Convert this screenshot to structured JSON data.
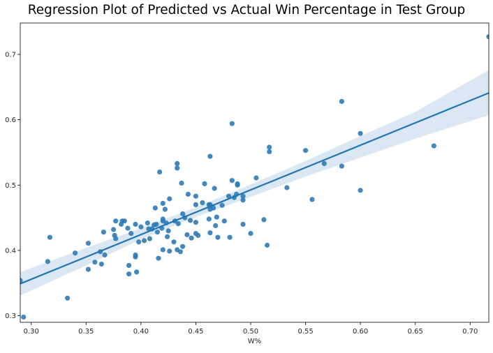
{
  "chart_data": {
    "type": "scatter",
    "title": "Regression Plot of Predicted vs Actual Win Percentage in Test Group",
    "xlabel": "W%",
    "ylabel": "",
    "xlim": [
      0.29,
      0.717
    ],
    "ylim": [
      0.29,
      0.748
    ],
    "xticks": [
      "0.30",
      "0.35",
      "0.40",
      "0.45",
      "0.50",
      "0.55",
      "0.60",
      "0.65",
      "0.70"
    ],
    "xtick_values": [
      0.3,
      0.35,
      0.4,
      0.45,
      0.5,
      0.55,
      0.6,
      0.65,
      0.7
    ],
    "yticks": [
      "0.3",
      "0.4",
      "0.5",
      "0.6",
      "0.7"
    ],
    "ytick_values": [
      0.3,
      0.4,
      0.5,
      0.6,
      0.7
    ],
    "grid": false,
    "colors": {
      "points": "#2f7ab5",
      "line": "#2474b0",
      "band": "#cfe0ef"
    },
    "regression": {
      "x": [
        0.29,
        0.717
      ],
      "y": [
        0.349,
        0.641
      ]
    },
    "confidence_band": {
      "x": [
        0.29,
        0.35,
        0.4,
        0.45,
        0.5,
        0.55,
        0.6,
        0.65,
        0.717
      ],
      "lower": [
        0.331,
        0.377,
        0.417,
        0.451,
        0.482,
        0.513,
        0.542,
        0.571,
        0.607
      ],
      "upper": [
        0.367,
        0.404,
        0.434,
        0.466,
        0.501,
        0.537,
        0.575,
        0.612,
        0.676
      ]
    },
    "points": [
      [
        0.29,
        0.354
      ],
      [
        0.293,
        0.298
      ],
      [
        0.315,
        0.383
      ],
      [
        0.317,
        0.42
      ],
      [
        0.333,
        0.327
      ],
      [
        0.34,
        0.396
      ],
      [
        0.352,
        0.371
      ],
      [
        0.352,
        0.411
      ],
      [
        0.358,
        0.382
      ],
      [
        0.363,
        0.398
      ],
      [
        0.364,
        0.379
      ],
      [
        0.366,
        0.428
      ],
      [
        0.367,
        0.393
      ],
      [
        0.375,
        0.432
      ],
      [
        0.376,
        0.423
      ],
      [
        0.377,
        0.445
      ],
      [
        0.377,
        0.418
      ],
      [
        0.382,
        0.44
      ],
      [
        0.383,
        0.445
      ],
      [
        0.385,
        0.445
      ],
      [
        0.388,
        0.434
      ],
      [
        0.389,
        0.364
      ],
      [
        0.389,
        0.377
      ],
      [
        0.391,
        0.426
      ],
      [
        0.395,
        0.44
      ],
      [
        0.395,
        0.39
      ],
      [
        0.395,
        0.393
      ],
      [
        0.396,
        0.367
      ],
      [
        0.398,
        0.413
      ],
      [
        0.4,
        0.436
      ],
      [
        0.403,
        0.415
      ],
      [
        0.406,
        0.442
      ],
      [
        0.407,
        0.433
      ],
      [
        0.408,
        0.418
      ],
      [
        0.41,
        0.433
      ],
      [
        0.412,
        0.439
      ],
      [
        0.413,
        0.465
      ],
      [
        0.414,
        0.44
      ],
      [
        0.415,
        0.428
      ],
      [
        0.416,
        0.388
      ],
      [
        0.417,
        0.52
      ],
      [
        0.419,
        0.434
      ],
      [
        0.42,
        0.472
      ],
      [
        0.42,
        0.445
      ],
      [
        0.42,
        0.448
      ],
      [
        0.42,
        0.401
      ],
      [
        0.422,
        0.463
      ],
      [
        0.423,
        0.442
      ],
      [
        0.424,
        0.421
      ],
      [
        0.425,
        0.43
      ],
      [
        0.426,
        0.479
      ],
      [
        0.426,
        0.399
      ],
      [
        0.43,
        0.413
      ],
      [
        0.431,
        0.445
      ],
      [
        0.433,
        0.533
      ],
      [
        0.433,
        0.526
      ],
      [
        0.433,
        0.401
      ],
      [
        0.434,
        0.441
      ],
      [
        0.436,
        0.398
      ],
      [
        0.437,
        0.503
      ],
      [
        0.438,
        0.456
      ],
      [
        0.438,
        0.406
      ],
      [
        0.44,
        0.45
      ],
      [
        0.442,
        0.424
      ],
      [
        0.443,
        0.486
      ],
      [
        0.445,
        0.446
      ],
      [
        0.446,
        0.419
      ],
      [
        0.45,
        0.483
      ],
      [
        0.45,
        0.47
      ],
      [
        0.45,
        0.443
      ],
      [
        0.45,
        0.426
      ],
      [
        0.452,
        0.423
      ],
      [
        0.456,
        0.473
      ],
      [
        0.458,
        0.502
      ],
      [
        0.462,
        0.47
      ],
      [
        0.462,
        0.448
      ],
      [
        0.463,
        0.544
      ],
      [
        0.463,
        0.47
      ],
      [
        0.463,
        0.463
      ],
      [
        0.463,
        0.427
      ],
      [
        0.466,
        0.465
      ],
      [
        0.467,
        0.495
      ],
      [
        0.468,
        0.438
      ],
      [
        0.469,
        0.451
      ],
      [
        0.47,
        0.42
      ],
      [
        0.474,
        0.469
      ],
      [
        0.476,
        0.445
      ],
      [
        0.48,
        0.483
      ],
      [
        0.481,
        0.42
      ],
      [
        0.483,
        0.507
      ],
      [
        0.483,
        0.594
      ],
      [
        0.485,
        0.481
      ],
      [
        0.487,
        0.486
      ],
      [
        0.488,
        0.5
      ],
      [
        0.488,
        0.502
      ],
      [
        0.493,
        0.477
      ],
      [
        0.493,
        0.483
      ],
      [
        0.493,
        0.44
      ],
      [
        0.5,
        0.426
      ],
      [
        0.505,
        0.511
      ],
      [
        0.512,
        0.447
      ],
      [
        0.515,
        0.408
      ],
      [
        0.517,
        0.558
      ],
      [
        0.517,
        0.551
      ],
      [
        0.533,
        0.496
      ],
      [
        0.55,
        0.553
      ],
      [
        0.556,
        0.478
      ],
      [
        0.567,
        0.533
      ],
      [
        0.583,
        0.628
      ],
      [
        0.583,
        0.529
      ],
      [
        0.6,
        0.579
      ],
      [
        0.6,
        0.492
      ],
      [
        0.667,
        0.56
      ],
      [
        0.717,
        0.727
      ]
    ]
  }
}
